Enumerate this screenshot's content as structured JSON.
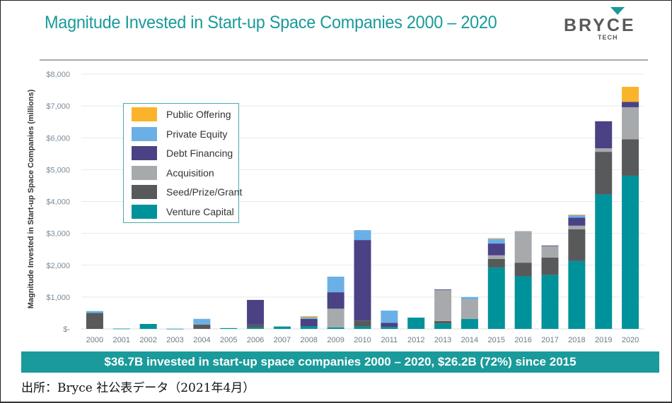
{
  "header": {
    "title": "Magnitude Invested in Start-up Space Companies 2000 – 2020",
    "logo_word": "BRYCE",
    "logo_sub": "TECH"
  },
  "banner_text": "$36.7B invested in start-up space companies 2000 – 2020, $26.2B (72%) since 2015",
  "source_text": "出所：Bryce 社公表データ（2021年4月）",
  "chart_data": {
    "type": "bar",
    "stacked": true,
    "title": "Magnitude Invested in Start-up Space Companies 2000 – 2020",
    "xlabel": "",
    "ylabel": "Magnitude Invested in Start-up Space Companies (millions)",
    "ylim": [
      0,
      8000
    ],
    "yticks": [
      0,
      1000,
      2000,
      3000,
      4000,
      5000,
      6000,
      7000,
      8000
    ],
    "ytick_labels": [
      "$-",
      "$1,000",
      "$2,000",
      "$3,000",
      "$4,000",
      "$5,000",
      "$6,000",
      "$7,000",
      "$8,000"
    ],
    "grid": true,
    "legend_position": "top-left",
    "categories": [
      "2000",
      "2001",
      "2002",
      "2003",
      "2004",
      "2005",
      "2006",
      "2007",
      "2008",
      "2009",
      "2010",
      "2011",
      "2012",
      "2013",
      "2014",
      "2015",
      "2016",
      "2017",
      "2018",
      "2019",
      "2020"
    ],
    "series": [
      {
        "name": "Venture Capital",
        "color": "#00929a",
        "values": [
          0,
          10,
          155,
          5,
          0,
          25,
          45,
          75,
          80,
          50,
          75,
          60,
          355,
          170,
          310,
          1930,
          1650,
          1690,
          2130,
          4220,
          4810
        ]
      },
      {
        "name": "Seed/Prize/Grant",
        "color": "#58595b",
        "values": [
          500,
          0,
          0,
          0,
          135,
          0,
          90,
          0,
          0,
          0,
          185,
          0,
          0,
          75,
          0,
          270,
          430,
          550,
          1000,
          1340,
          1140
        ]
      },
      {
        "name": "Acquisition",
        "color": "#a7aaac",
        "values": [
          0,
          0,
          0,
          0,
          0,
          0,
          0,
          0,
          0,
          585,
          0,
          0,
          0,
          985,
          620,
          110,
          990,
          370,
          110,
          110,
          1010
        ]
      },
      {
        "name": "Debt Financing",
        "color": "#4a4285",
        "values": [
          0,
          0,
          0,
          0,
          0,
          0,
          775,
          0,
          235,
          515,
          2530,
          130,
          0,
          10,
          0,
          370,
          0,
          10,
          250,
          850,
          170
        ]
      },
      {
        "name": "Private Equity",
        "color": "#6ab0e6",
        "values": [
          60,
          0,
          0,
          0,
          180,
          0,
          0,
          0,
          50,
          490,
          310,
          385,
          0,
          0,
          70,
          150,
          0,
          0,
          80,
          0,
          0
        ]
      },
      {
        "name": "Public Offering",
        "color": "#fbb32a",
        "values": [
          0,
          0,
          0,
          0,
          0,
          0,
          0,
          0,
          35,
          0,
          0,
          0,
          0,
          0,
          0,
          20,
          0,
          0,
          20,
          0,
          470
        ]
      }
    ],
    "legend_order": [
      "Public Offering",
      "Private Equity",
      "Debt Financing",
      "Acquisition",
      "Seed/Prize/Grant",
      "Venture Capital"
    ]
  }
}
